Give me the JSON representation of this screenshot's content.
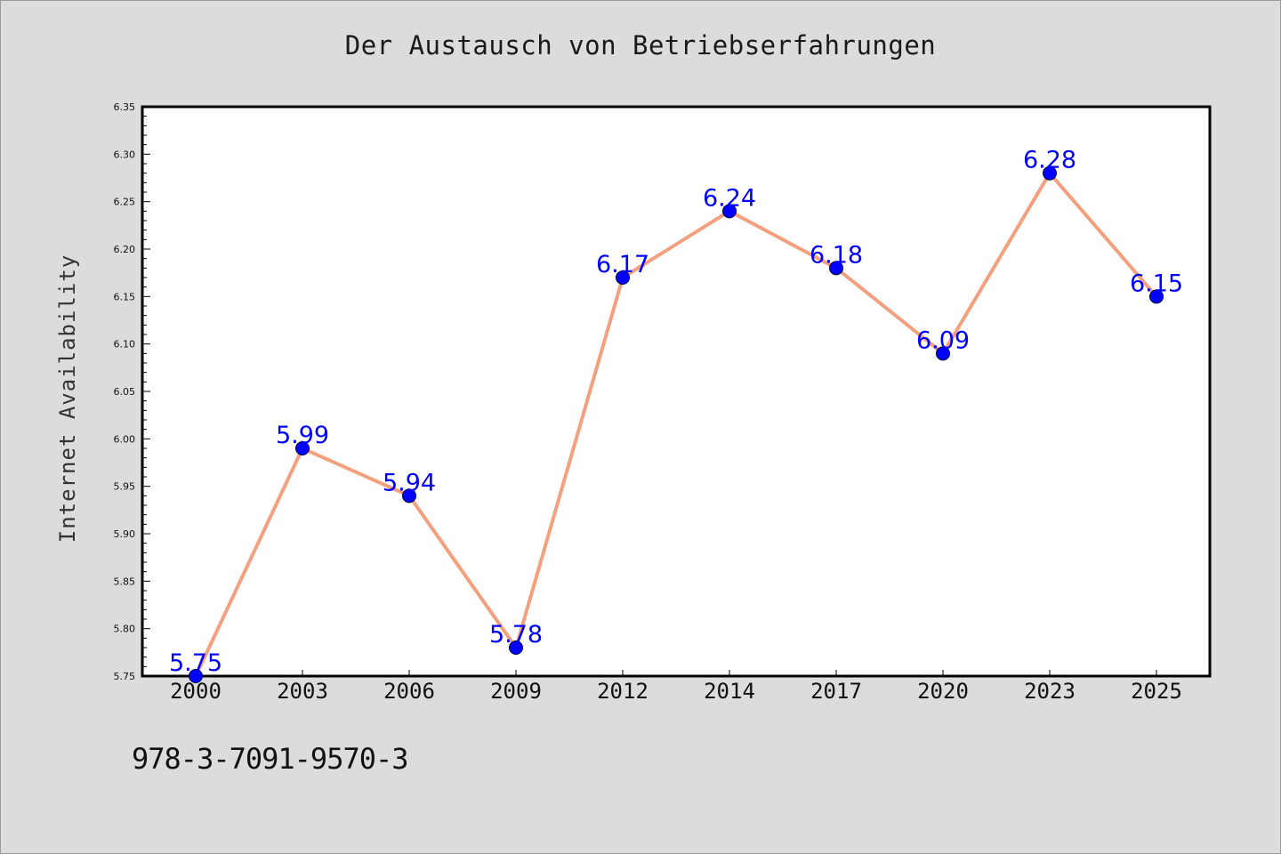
{
  "title": "Der Austausch von Betriebserfahrungen",
  "ylabel": "Internet Availability",
  "footer_code": "978-3-7091-9570-3",
  "colors": {
    "background": "#dcdcdc",
    "plot_background": "#ffffff",
    "line": "#f4a07e",
    "marker": "#0000ff",
    "data_label": "#0000ff"
  },
  "chart_data": {
    "type": "line",
    "categories": [
      "2000",
      "2003",
      "2006",
      "2009",
      "2012",
      "2014",
      "2017",
      "2020",
      "2023",
      "2025"
    ],
    "series": [
      {
        "values": [
          5.75,
          5.99,
          5.94,
          5.78,
          6.17,
          6.24,
          6.18,
          6.09,
          6.28,
          6.15
        ]
      }
    ],
    "data_labels": [
      "5.75",
      "5.99",
      "5.94",
      "5.78",
      "6.17",
      "6.24",
      "6.18",
      "6.09",
      "6.28",
      "6.15"
    ],
    "title": "Der Austausch von Betriebserfahrungen",
    "xlabel": "",
    "ylabel": "Internet Availability",
    "ylim": [
      5.75,
      6.35
    ],
    "yticks": [
      "5.75",
      "5.80",
      "5.85",
      "5.90",
      "5.95",
      "6.00",
      "6.05",
      "6.10",
      "6.15",
      "6.20",
      "6.25",
      "6.30",
      "6.35"
    ],
    "grid": false,
    "legend": "none"
  }
}
